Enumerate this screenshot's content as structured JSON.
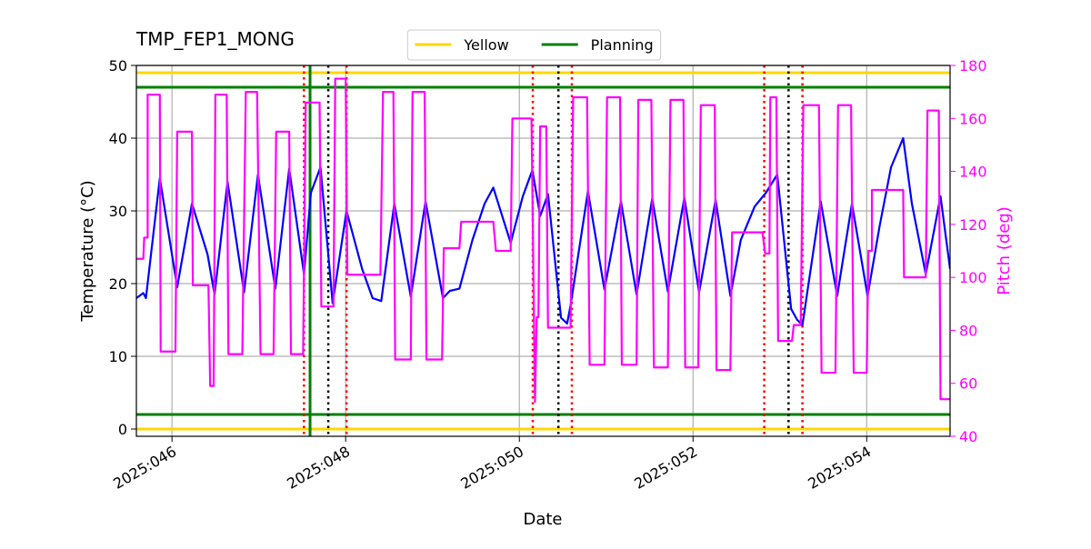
{
  "chart_data": {
    "type": "line",
    "title": "TMP_FEP1_MONG",
    "xlabel": "Date",
    "ylabel": "Temperature (°C)",
    "y2label": "Pitch (deg)",
    "y2color": "#ff00ff",
    "xlim": [
      45.59,
      54.96
    ],
    "xticks": [
      {
        "value": 46,
        "label": "2025:046"
      },
      {
        "value": 48,
        "label": "2025:048"
      },
      {
        "value": 50,
        "label": "2025:050"
      },
      {
        "value": 52,
        "label": "2025:052"
      },
      {
        "value": 54,
        "label": "2025:054"
      }
    ],
    "ylim": [
      -1,
      50
    ],
    "yticks": [
      0,
      10,
      20,
      30,
      40,
      50
    ],
    "y2lim": [
      40,
      180
    ],
    "y2ticks": [
      40,
      60,
      80,
      100,
      120,
      140,
      160,
      180
    ],
    "grid": true,
    "legend": "upper center",
    "limits": [
      {
        "name": "Yellow",
        "color": "#ffd700",
        "values": [
          0,
          49
        ]
      },
      {
        "name": "Planning",
        "color": "#008000",
        "values": [
          2,
          47
        ]
      }
    ],
    "vlines": [
      {
        "color": "#008000",
        "style": "solid",
        "x": [
          47.59
        ]
      },
      {
        "color": "#ff0000",
        "style": "dotted",
        "x": [
          47.52,
          48.01,
          50.155,
          50.605,
          52.82,
          53.26
        ]
      },
      {
        "color": "#000000",
        "style": "dotted",
        "x": [
          47.8,
          50.45,
          53.1
        ]
      }
    ],
    "series": [
      {
        "color": "#0000ff",
        "axis": "y",
        "x": [
          45.59,
          45.67,
          45.7,
          45.86,
          46.06,
          46.23,
          46.41,
          46.49,
          46.64,
          46.83,
          46.99,
          47.19,
          47.35,
          47.52,
          47.6,
          47.71,
          47.85,
          48.01,
          48.19,
          48.31,
          48.41,
          48.56,
          48.75,
          48.92,
          49.12,
          49.2,
          49.31,
          49.46,
          49.6,
          49.7,
          49.9,
          50.04,
          50.15,
          50.24,
          50.33,
          50.48,
          50.55,
          50.59,
          50.79,
          50.98,
          51.17,
          51.35,
          51.53,
          51.71,
          51.9,
          52.07,
          52.26,
          52.43,
          52.55,
          52.71,
          52.84,
          52.97,
          53.13,
          53.2,
          53.26,
          53.47,
          53.66,
          53.83,
          54.01,
          54.15,
          54.28,
          54.42,
          54.52,
          54.68,
          54.85,
          54.96
        ],
        "values": [
          18,
          18.7,
          18,
          34.5,
          19.5,
          31,
          24,
          18.5,
          34,
          18.8,
          35,
          19.3,
          35.8,
          21.3,
          32.5,
          36,
          17.3,
          30,
          22,
          18,
          17.6,
          31,
          18.2,
          31.3,
          18,
          19,
          19.3,
          26,
          31,
          33.2,
          25.6,
          32,
          35.6,
          29.3,
          32.3,
          15.3,
          14.5,
          17,
          32.7,
          19.2,
          31.3,
          18.5,
          31.7,
          18.9,
          31.8,
          18.8,
          31.5,
          18.3,
          26,
          30.6,
          32.5,
          35,
          16.5,
          15,
          14.3,
          31.3,
          18.3,
          31,
          18.3,
          28,
          36,
          40,
          31,
          21.3,
          32,
          22
        ]
      },
      {
        "color": "#ff00ff",
        "axis": "y2",
        "x": [
          45.59,
          45.67,
          45.68,
          45.72,
          45.72,
          45.86,
          45.87,
          46.04,
          46.06,
          46.23,
          46.24,
          46.42,
          46.44,
          46.48,
          46.5,
          46.63,
          46.65,
          46.81,
          46.85,
          46.98,
          47.02,
          47.17,
          47.2,
          47.35,
          47.37,
          47.51,
          47.54,
          47.7,
          47.72,
          47.86,
          47.88,
          48,
          48.02,
          48.4,
          48.43,
          48.55,
          48.57,
          48.75,
          48.77,
          48.91,
          48.93,
          49.11,
          49.13,
          49.31,
          49.33,
          49.7,
          49.73,
          49.9,
          49.92,
          50.14,
          50.18,
          50.2,
          50.22,
          50.24,
          50.31,
          50.33,
          50.59,
          50.62,
          50.78,
          50.81,
          50.98,
          51.01,
          51.16,
          51.18,
          51.35,
          51.37,
          51.52,
          51.55,
          51.71,
          51.74,
          51.89,
          51.91,
          52.06,
          52.09,
          52.25,
          52.27,
          52.43,
          52.45,
          52.8,
          52.83,
          52.88,
          52.89,
          52.96,
          52.98,
          53.14,
          53.16,
          53.24,
          53.27,
          53.45,
          53.48,
          53.64,
          53.67,
          53.82,
          53.85,
          54,
          54.02,
          54.06,
          54.06,
          54.42,
          54.43,
          54.68,
          54.7,
          54.83,
          54.85,
          54.96
        ],
        "values": [
          107,
          107,
          115,
          115,
          169,
          169,
          72,
          72,
          155,
          155,
          97,
          97,
          59,
          59,
          169,
          169,
          71,
          71,
          170,
          170,
          71,
          71,
          155,
          155,
          71,
          71,
          166,
          166,
          89,
          89,
          175,
          175,
          101,
          101,
          170,
          170,
          69,
          69,
          170,
          170,
          69,
          69,
          111,
          111,
          121,
          121,
          110,
          110,
          160,
          160,
          53,
          85,
          85,
          157,
          157,
          81,
          81,
          168,
          168,
          67,
          67,
          168,
          168,
          67,
          67,
          167,
          167,
          66,
          66,
          167,
          167,
          66,
          66,
          165,
          165,
          65,
          65,
          117,
          117,
          109,
          109,
          168,
          168,
          76,
          76,
          82,
          82,
          165,
          165,
          64,
          64,
          165,
          165,
          64,
          64,
          110,
          110,
          133,
          133,
          100,
          100,
          163,
          163,
          54,
          54
        ]
      }
    ]
  }
}
